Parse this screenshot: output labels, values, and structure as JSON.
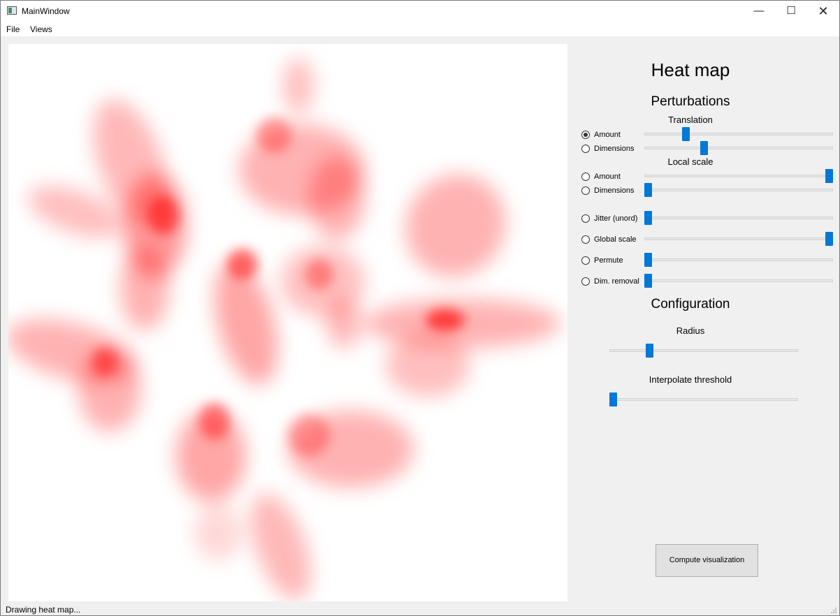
{
  "window": {
    "title": "MainWindow",
    "minimize_icon": "minimize-icon",
    "maximize_icon": "maximize-icon",
    "close_icon": "close-icon"
  },
  "menu": {
    "items": [
      "File",
      "Views"
    ]
  },
  "panel": {
    "title": "Heat map",
    "perturbations": {
      "heading": "Perturbations",
      "translation_heading": "Translation",
      "local_scale_heading": "Local scale",
      "options": [
        {
          "label": "Amount",
          "checked": true,
          "slider_value": 0.21
        },
        {
          "label": "Dimensions",
          "checked": false,
          "slider_value": 0.31
        },
        {
          "label": "Amount",
          "checked": false,
          "slider_value": 1.0
        },
        {
          "label": "Dimensions",
          "checked": false,
          "slider_value": 0.0
        },
        {
          "label": "Jitter (unord)",
          "checked": false,
          "slider_value": 0.0
        },
        {
          "label": "Global scale",
          "checked": false,
          "slider_value": 1.0
        },
        {
          "label": "Permute",
          "checked": false,
          "slider_value": 0.0
        },
        {
          "label": "Dim. removal",
          "checked": false,
          "slider_value": 0.0
        }
      ]
    },
    "configuration": {
      "heading": "Configuration",
      "radius_label": "Radius",
      "radius_value": 0.2,
      "interpolate_label": "Interpolate threshold",
      "interpolate_value": 0.0
    },
    "compute_button": "Compute visualization"
  },
  "status": {
    "text": "Drawing heat map..."
  },
  "colors": {
    "heat": "#ff0000",
    "accent": "#0078d7"
  }
}
